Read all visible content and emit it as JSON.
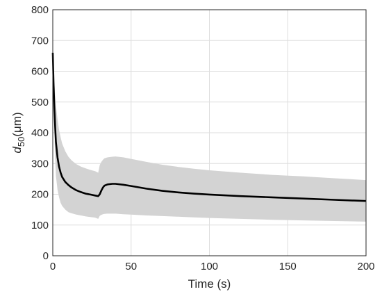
{
  "chart_data": {
    "type": "area",
    "title": "",
    "xlabel": "Time (s)",
    "ylabel_main": "d",
    "ylabel_sub": "50",
    "ylabel_unit": "(μm)",
    "xlim": [
      0,
      200
    ],
    "ylim": [
      0,
      800
    ],
    "xticks": [
      0,
      50,
      100,
      150,
      200
    ],
    "yticks": [
      0,
      100,
      200,
      300,
      400,
      500,
      600,
      700,
      800
    ],
    "grid": true,
    "legend": "none",
    "colors": {
      "mean": "#000000",
      "band": "#d3d3d3",
      "grid": "#dedede",
      "axis": "#262626"
    },
    "series": [
      {
        "role": "mean",
        "x": [
          0,
          0.5,
          1,
          1.5,
          2,
          3,
          4,
          5,
          6,
          8,
          10,
          12,
          15,
          18,
          21,
          24,
          27,
          29,
          30,
          31,
          32,
          33,
          35,
          38,
          40,
          45,
          50,
          60,
          70,
          80,
          90,
          100,
          120,
          140,
          160,
          180,
          200
        ],
        "y": [
          660,
          560,
          480,
          420,
          370,
          320,
          290,
          270,
          256,
          240,
          230,
          222,
          213,
          207,
          202,
          199,
          196,
          194,
          200,
          212,
          222,
          228,
          232,
          234,
          234,
          231,
          227,
          218,
          211,
          206,
          202,
          199,
          194,
          190,
          186,
          182,
          178
        ]
      },
      {
        "role": "band",
        "x": [
          0,
          0.5,
          1,
          1.5,
          2,
          3,
          4,
          5,
          6,
          8,
          10,
          12,
          15,
          18,
          21,
          24,
          27,
          29,
          30,
          31,
          32,
          33,
          35,
          38,
          40,
          45,
          50,
          60,
          70,
          80,
          90,
          100,
          120,
          140,
          160,
          180,
          200
        ],
        "upper": [
          660,
          600,
          560,
          520,
          490,
          445,
          410,
          385,
          365,
          340,
          322,
          310,
          298,
          290,
          284,
          279,
          275,
          270,
          295,
          305,
          312,
          317,
          320,
          322,
          323,
          320,
          315,
          305,
          296,
          289,
          283,
          278,
          270,
          263,
          258,
          252,
          246
        ],
        "lower": [
          660,
          520,
          400,
          320,
          260,
          215,
          190,
          172,
          162,
          150,
          142,
          138,
          134,
          131,
          128,
          126,
          124,
          120,
          130,
          133,
          135,
          136,
          137,
          137,
          137,
          135,
          134,
          131,
          129,
          127,
          125,
          123,
          120,
          117,
          115,
          113,
          111
        ]
      }
    ]
  }
}
